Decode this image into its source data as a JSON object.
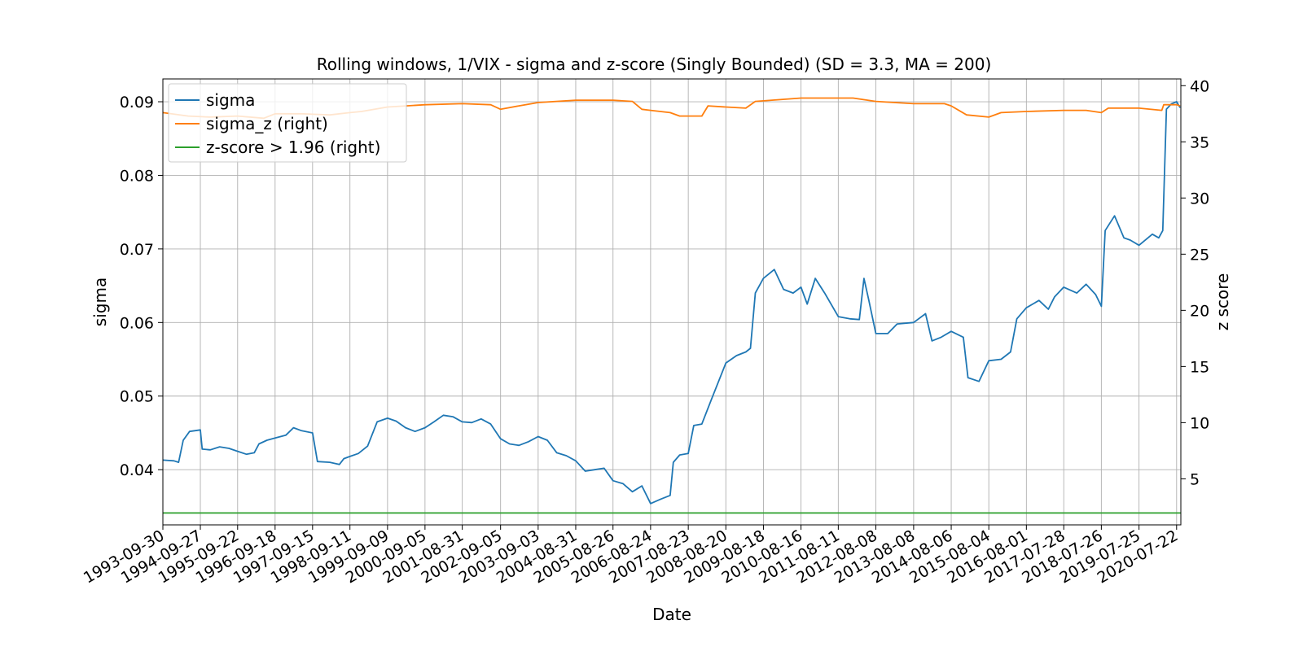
{
  "chart_data": {
    "type": "line",
    "title": "Rolling windows, 1/VIX - sigma and z-score (Singly Bounded) (SD = 3.3, MA = 200)",
    "xlabel": "Date",
    "ylabel": "sigma",
    "y2label": "z score",
    "ylim": [
      0.0325,
      0.0931
    ],
    "y2lim": [
      0.9,
      40.6
    ],
    "yticks": [
      "0.04",
      "0.05",
      "0.06",
      "0.07",
      "0.08",
      "0.09"
    ],
    "y2ticks": [
      "5",
      "10",
      "15",
      "20",
      "25",
      "30",
      "35",
      "40"
    ],
    "xlim": [
      "1993-09-30",
      "2020-09-01"
    ],
    "xticks": [
      "1993-09-30",
      "1994-09-27",
      "1995-09-22",
      "1996-09-18",
      "1997-09-15",
      "1998-09-11",
      "1999-09-09",
      "2000-09-05",
      "2001-08-31",
      "2002-09-05",
      "2003-09-03",
      "2004-08-31",
      "2005-08-26",
      "2006-08-24",
      "2007-08-23",
      "2008-08-20",
      "2009-08-18",
      "2010-08-16",
      "2011-08-11",
      "2012-08-08",
      "2013-08-08",
      "2014-08-06",
      "2015-08-04",
      "2016-08-01",
      "2017-07-28",
      "2018-07-26",
      "2019-07-25",
      "2020-07-22"
    ],
    "grid": true,
    "legend_position": "top-left",
    "series": [
      {
        "name": "sigma",
        "axis": "left",
        "color": "#1f77b4",
        "points": [
          [
            "1993-09-30",
            0.0413
          ],
          [
            "1994-01-15",
            0.0412
          ],
          [
            "1994-03-01",
            0.041
          ],
          [
            "1994-04-15",
            0.044
          ],
          [
            "1994-06-15",
            0.0452
          ],
          [
            "1994-09-27",
            0.0454
          ],
          [
            "1994-10-15",
            0.0428
          ],
          [
            "1995-01-01",
            0.0427
          ],
          [
            "1995-04-01",
            0.0431
          ],
          [
            "1995-07-01",
            0.0429
          ],
          [
            "1995-09-22",
            0.0425
          ],
          [
            "1995-12-15",
            0.0421
          ],
          [
            "1996-03-01",
            0.0423
          ],
          [
            "1996-04-15",
            0.0435
          ],
          [
            "1996-07-01",
            0.044
          ],
          [
            "1996-09-18",
            0.0443
          ],
          [
            "1997-01-01",
            0.0447
          ],
          [
            "1997-03-15",
            0.0457
          ],
          [
            "1997-06-01",
            0.0453
          ],
          [
            "1997-09-15",
            0.045
          ],
          [
            "1997-11-01",
            0.0411
          ],
          [
            "1998-03-01",
            0.041
          ],
          [
            "1998-06-01",
            0.0407
          ],
          [
            "1998-07-15",
            0.0415
          ],
          [
            "1998-09-11",
            0.0418
          ],
          [
            "1998-12-01",
            0.0422
          ],
          [
            "1999-03-01",
            0.0432
          ],
          [
            "1999-06-01",
            0.0465
          ],
          [
            "1999-09-09",
            0.047
          ],
          [
            "1999-12-01",
            0.0466
          ],
          [
            "2000-03-01",
            0.0457
          ],
          [
            "2000-06-01",
            0.0452
          ],
          [
            "2000-09-05",
            0.0457
          ],
          [
            "2000-12-01",
            0.0465
          ],
          [
            "2001-03-01",
            0.0474
          ],
          [
            "2001-06-01",
            0.0472
          ],
          [
            "2001-08-31",
            0.0465
          ],
          [
            "2001-12-01",
            0.0464
          ],
          [
            "2002-03-01",
            0.0469
          ],
          [
            "2002-06-01",
            0.0462
          ],
          [
            "2002-09-05",
            0.0442
          ],
          [
            "2002-12-01",
            0.0435
          ],
          [
            "2003-03-01",
            0.0433
          ],
          [
            "2003-06-01",
            0.0438
          ],
          [
            "2003-09-03",
            0.0445
          ],
          [
            "2003-12-01",
            0.044
          ],
          [
            "2004-03-01",
            0.0423
          ],
          [
            "2004-06-01",
            0.0419
          ],
          [
            "2004-08-31",
            0.0412
          ],
          [
            "2004-12-01",
            0.0398
          ],
          [
            "2005-03-01",
            0.04
          ],
          [
            "2005-06-01",
            0.0402
          ],
          [
            "2005-08-26",
            0.0385
          ],
          [
            "2005-12-01",
            0.0381
          ],
          [
            "2006-03-01",
            0.037
          ],
          [
            "2006-06-01",
            0.0378
          ],
          [
            "2006-08-24",
            0.0354
          ],
          [
            "2006-12-01",
            0.036
          ],
          [
            "2007-03-01",
            0.0365
          ],
          [
            "2007-04-01",
            0.041
          ],
          [
            "2007-06-01",
            0.042
          ],
          [
            "2007-08-23",
            0.0422
          ],
          [
            "2007-10-15",
            0.046
          ],
          [
            "2008-01-01",
            0.0462
          ],
          [
            "2008-04-01",
            0.0495
          ],
          [
            "2008-08-20",
            0.0545
          ],
          [
            "2008-12-01",
            0.0555
          ],
          [
            "2009-03-01",
            0.056
          ],
          [
            "2009-04-15",
            0.0565
          ],
          [
            "2009-06-01",
            0.064
          ],
          [
            "2009-08-18",
            0.066
          ],
          [
            "2009-12-01",
            0.0672
          ],
          [
            "2010-03-01",
            0.0645
          ],
          [
            "2010-06-01",
            0.064
          ],
          [
            "2010-08-16",
            0.0648
          ],
          [
            "2010-10-15",
            0.0625
          ],
          [
            "2011-01-01",
            0.066
          ],
          [
            "2011-04-01",
            0.064
          ],
          [
            "2011-08-11",
            0.0608
          ],
          [
            "2011-12-01",
            0.0605
          ],
          [
            "2012-03-01",
            0.0604
          ],
          [
            "2012-04-15",
            0.066
          ],
          [
            "2012-06-01",
            0.063
          ],
          [
            "2012-08-08",
            0.0585
          ],
          [
            "2012-12-01",
            0.0585
          ],
          [
            "2013-03-01",
            0.0598
          ],
          [
            "2013-08-08",
            0.06
          ],
          [
            "2013-12-01",
            0.0612
          ],
          [
            "2014-02-01",
            0.0575
          ],
          [
            "2014-05-01",
            0.058
          ],
          [
            "2014-08-06",
            0.0588
          ],
          [
            "2014-12-01",
            0.058
          ],
          [
            "2015-01-15",
            0.0525
          ],
          [
            "2015-05-01",
            0.052
          ],
          [
            "2015-08-04",
            0.0548
          ],
          [
            "2015-12-01",
            0.055
          ],
          [
            "2016-03-01",
            0.056
          ],
          [
            "2016-05-01",
            0.0605
          ],
          [
            "2016-08-01",
            0.062
          ],
          [
            "2016-12-01",
            0.063
          ],
          [
            "2017-03-01",
            0.0618
          ],
          [
            "2017-05-01",
            0.0635
          ],
          [
            "2017-07-28",
            0.0648
          ],
          [
            "2017-12-01",
            0.064
          ],
          [
            "2018-03-01",
            0.0652
          ],
          [
            "2018-06-01",
            0.0638
          ],
          [
            "2018-07-26",
            0.0622
          ],
          [
            "2018-09-01",
            0.0725
          ],
          [
            "2018-12-01",
            0.0745
          ],
          [
            "2019-03-01",
            0.0715
          ],
          [
            "2019-05-01",
            0.0712
          ],
          [
            "2019-07-25",
            0.0705
          ],
          [
            "2019-12-01",
            0.072
          ],
          [
            "2020-02-01",
            0.0715
          ],
          [
            "2020-03-10",
            0.0725
          ],
          [
            "2020-04-15",
            0.089
          ],
          [
            "2020-06-01",
            0.0897
          ],
          [
            "2020-07-22",
            0.09
          ],
          [
            "2020-08-25",
            0.0892
          ]
        ]
      },
      {
        "name": "sigma_z (right)",
        "axis": "right",
        "color": "#ff7f0e",
        "points": [
          [
            "1993-09-30",
            37.6
          ],
          [
            "1994-06-01",
            37.3
          ],
          [
            "1995-01-01",
            37.2
          ],
          [
            "1995-09-22",
            37.3
          ],
          [
            "1996-06-01",
            37.1
          ],
          [
            "1996-09-18",
            37.5
          ],
          [
            "1997-06-01",
            37.5
          ],
          [
            "1998-03-01",
            37.4
          ],
          [
            "1998-09-11",
            37.6
          ],
          [
            "1999-01-01",
            37.7
          ],
          [
            "1999-09-09",
            38.1
          ],
          [
            "2000-09-05",
            38.3
          ],
          [
            "2001-08-31",
            38.4
          ],
          [
            "2002-06-01",
            38.3
          ],
          [
            "2002-09-05",
            37.9
          ],
          [
            "2003-03-01",
            38.2
          ],
          [
            "2003-09-03",
            38.5
          ],
          [
            "2004-08-31",
            38.7
          ],
          [
            "2005-08-26",
            38.7
          ],
          [
            "2006-03-01",
            38.6
          ],
          [
            "2006-06-01",
            37.9
          ],
          [
            "2006-08-24",
            37.8
          ],
          [
            "2007-03-01",
            37.6
          ],
          [
            "2007-06-01",
            37.3
          ],
          [
            "2008-01-01",
            37.3
          ],
          [
            "2008-03-01",
            38.2
          ],
          [
            "2008-08-20",
            38.1
          ],
          [
            "2009-03-01",
            38.0
          ],
          [
            "2009-06-01",
            38.6
          ],
          [
            "2010-08-16",
            38.9
          ],
          [
            "2011-08-11",
            38.9
          ],
          [
            "2012-01-01",
            38.9
          ],
          [
            "2012-08-08",
            38.6
          ],
          [
            "2013-08-08",
            38.4
          ],
          [
            "2014-06-01",
            38.4
          ],
          [
            "2014-08-06",
            38.2
          ],
          [
            "2015-01-01",
            37.4
          ],
          [
            "2015-08-04",
            37.2
          ],
          [
            "2015-12-01",
            37.6
          ],
          [
            "2016-08-01",
            37.7
          ],
          [
            "2017-07-28",
            37.8
          ],
          [
            "2018-03-01",
            37.8
          ],
          [
            "2018-07-26",
            37.6
          ],
          [
            "2018-10-01",
            38.0
          ],
          [
            "2019-07-25",
            38.0
          ],
          [
            "2020-03-01",
            37.8
          ],
          [
            "2020-03-20",
            38.3
          ],
          [
            "2020-04-15",
            38.3
          ],
          [
            "2020-07-22",
            38.3
          ],
          [
            "2020-08-25",
            38.2
          ]
        ]
      },
      {
        "name": "z-score > 1.96 (right)",
        "axis": "right",
        "color": "#2ca02c",
        "points": [
          [
            "1993-09-30",
            1.96
          ],
          [
            "2020-09-01",
            1.96
          ]
        ]
      }
    ]
  }
}
